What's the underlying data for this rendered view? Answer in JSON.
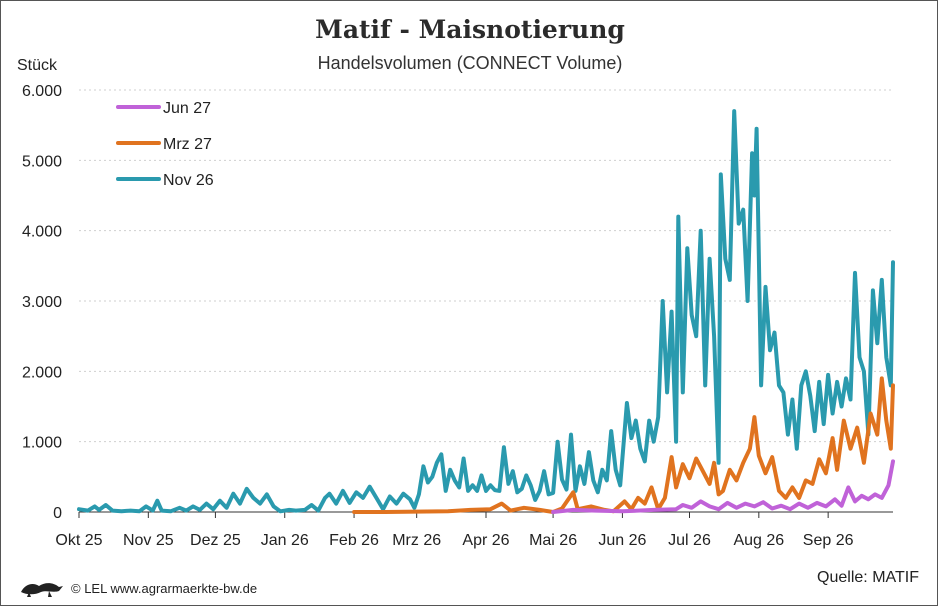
{
  "header": {
    "title": "Matif - Maisnotierung",
    "subtitle": "Handelsvolumen (CONNECT Volume)",
    "ylabel": "Stück"
  },
  "footer": {
    "copyright": "© LEL www.agrarmaerkte-bw.de",
    "source": "Quelle: MATIF"
  },
  "chart_data": {
    "type": "line",
    "title": "Matif - Maisnotierung",
    "subtitle": "Handelsvolumen (CONNECT Volume)",
    "ylabel": "Stück",
    "xlabel": "",
    "ylim": [
      0,
      6000
    ],
    "yticks": [
      0,
      1000,
      2000,
      3000,
      4000,
      5000,
      6000
    ],
    "ytick_labels": [
      "0",
      "1.000",
      "2.000",
      "3.000",
      "4.000",
      "5.000",
      "6.000"
    ],
    "x_range": [
      "2025-10-01",
      "2026-09-30"
    ],
    "xticks": [
      {
        "date": "2025-10-01",
        "label": "Okt 25"
      },
      {
        "date": "2025-11-01",
        "label": "Nov 25"
      },
      {
        "date": "2025-12-01",
        "label": "Dez 25"
      },
      {
        "date": "2026-01-01",
        "label": "Jan 26"
      },
      {
        "date": "2026-02-01",
        "label": "Feb 26"
      },
      {
        "date": "2026-03-01",
        "label": "Mrz 26"
      },
      {
        "date": "2026-04-01",
        "label": "Apr 26"
      },
      {
        "date": "2026-05-01",
        "label": "Mai 26"
      },
      {
        "date": "2026-06-01",
        "label": "Jun 26"
      },
      {
        "date": "2026-07-01",
        "label": "Jul 26"
      },
      {
        "date": "2026-08-01",
        "label": "Aug 26"
      },
      {
        "date": "2026-09-01",
        "label": "Sep 26"
      }
    ],
    "grid": "horizontal dashed",
    "legend": "top-left",
    "series": [
      {
        "name": "Nov 26",
        "color": "#2a9aae",
        "points": [
          [
            "2025-10-01",
            40
          ],
          [
            "2025-10-05",
            20
          ],
          [
            "2025-10-08",
            80
          ],
          [
            "2025-10-10",
            30
          ],
          [
            "2025-10-13",
            100
          ],
          [
            "2025-10-16",
            20
          ],
          [
            "2025-10-20",
            10
          ],
          [
            "2025-10-24",
            20
          ],
          [
            "2025-10-28",
            10
          ],
          [
            "2025-10-31",
            80
          ],
          [
            "2025-11-03",
            20
          ],
          [
            "2025-11-05",
            160
          ],
          [
            "2025-11-07",
            20
          ],
          [
            "2025-11-11",
            10
          ],
          [
            "2025-11-15",
            60
          ],
          [
            "2025-11-18",
            20
          ],
          [
            "2025-11-21",
            80
          ],
          [
            "2025-11-24",
            30
          ],
          [
            "2025-11-27",
            120
          ],
          [
            "2025-11-30",
            40
          ],
          [
            "2025-12-03",
            160
          ],
          [
            "2025-12-06",
            60
          ],
          [
            "2025-12-09",
            260
          ],
          [
            "2025-12-12",
            120
          ],
          [
            "2025-12-15",
            330
          ],
          [
            "2025-12-18",
            200
          ],
          [
            "2025-12-21",
            120
          ],
          [
            "2025-12-24",
            250
          ],
          [
            "2025-12-27",
            80
          ],
          [
            "2025-12-30",
            10
          ],
          [
            "2026-01-03",
            30
          ],
          [
            "2026-01-06",
            20
          ],
          [
            "2026-01-10",
            30
          ],
          [
            "2026-01-13",
            100
          ],
          [
            "2026-01-16",
            20
          ],
          [
            "2026-01-19",
            200
          ],
          [
            "2026-01-21",
            260
          ],
          [
            "2026-01-24",
            120
          ],
          [
            "2026-01-27",
            300
          ],
          [
            "2026-01-30",
            130
          ],
          [
            "2026-02-02",
            280
          ],
          [
            "2026-02-05",
            200
          ],
          [
            "2026-02-08",
            360
          ],
          [
            "2026-02-11",
            200
          ],
          [
            "2026-02-14",
            40
          ],
          [
            "2026-02-17",
            220
          ],
          [
            "2026-02-20",
            120
          ],
          [
            "2026-02-23",
            260
          ],
          [
            "2026-02-26",
            180
          ],
          [
            "2026-02-28",
            60
          ],
          [
            "2026-03-02",
            250
          ],
          [
            "2026-03-04",
            650
          ],
          [
            "2026-03-06",
            420
          ],
          [
            "2026-03-08",
            500
          ],
          [
            "2026-03-10",
            700
          ],
          [
            "2026-03-12",
            820
          ],
          [
            "2026-03-14",
            300
          ],
          [
            "2026-03-16",
            600
          ],
          [
            "2026-03-18",
            450
          ],
          [
            "2026-03-20",
            350
          ],
          [
            "2026-03-22",
            760
          ],
          [
            "2026-03-24",
            300
          ],
          [
            "2026-03-26",
            380
          ],
          [
            "2026-03-28",
            300
          ],
          [
            "2026-03-30",
            520
          ],
          [
            "2026-04-01",
            300
          ],
          [
            "2026-04-03",
            380
          ],
          [
            "2026-04-05",
            310
          ],
          [
            "2026-04-07",
            300
          ],
          [
            "2026-04-09",
            920
          ],
          [
            "2026-04-11",
            400
          ],
          [
            "2026-04-13",
            580
          ],
          [
            "2026-04-15",
            280
          ],
          [
            "2026-04-17",
            330
          ],
          [
            "2026-04-19",
            520
          ],
          [
            "2026-04-21",
            380
          ],
          [
            "2026-04-23",
            170
          ],
          [
            "2026-04-25",
            300
          ],
          [
            "2026-04-27",
            580
          ],
          [
            "2026-04-29",
            250
          ],
          [
            "2026-05-01",
            270
          ],
          [
            "2026-05-03",
            1000
          ],
          [
            "2026-05-05",
            460
          ],
          [
            "2026-05-07",
            320
          ],
          [
            "2026-05-09",
            1100
          ],
          [
            "2026-05-11",
            300
          ],
          [
            "2026-05-13",
            650
          ],
          [
            "2026-05-15",
            400
          ],
          [
            "2026-05-17",
            850
          ],
          [
            "2026-05-19",
            450
          ],
          [
            "2026-05-21",
            280
          ],
          [
            "2026-05-23",
            600
          ],
          [
            "2026-05-25",
            450
          ],
          [
            "2026-05-27",
            1150
          ],
          [
            "2026-05-29",
            600
          ],
          [
            "2026-05-31",
            380
          ],
          [
            "2026-06-03",
            1550
          ],
          [
            "2026-06-05",
            1050
          ],
          [
            "2026-06-07",
            1300
          ],
          [
            "2026-06-09",
            900
          ],
          [
            "2026-06-11",
            720
          ],
          [
            "2026-06-13",
            1300
          ],
          [
            "2026-06-15",
            1000
          ],
          [
            "2026-06-17",
            1350
          ],
          [
            "2026-06-19",
            3000
          ],
          [
            "2026-06-21",
            1700
          ],
          [
            "2026-06-23",
            2850
          ],
          [
            "2026-06-25",
            1000
          ],
          [
            "2026-06-26",
            4200
          ],
          [
            "2026-06-28",
            1700
          ],
          [
            "2026-06-30",
            3750
          ],
          [
            "2026-07-02",
            2800
          ],
          [
            "2026-07-04",
            2500
          ],
          [
            "2026-07-06",
            4000
          ],
          [
            "2026-07-08",
            1800
          ],
          [
            "2026-07-10",
            3600
          ],
          [
            "2026-07-12",
            2500
          ],
          [
            "2026-07-14",
            700
          ],
          [
            "2026-07-15",
            4800
          ],
          [
            "2026-07-17",
            3600
          ],
          [
            "2026-07-19",
            3300
          ],
          [
            "2026-07-21",
            5700
          ],
          [
            "2026-07-23",
            4100
          ],
          [
            "2026-07-25",
            4300
          ],
          [
            "2026-07-27",
            3000
          ],
          [
            "2026-07-29",
            5100
          ],
          [
            "2026-07-30",
            4500
          ],
          [
            "2026-07-31",
            5450
          ],
          [
            "2026-08-02",
            1800
          ],
          [
            "2026-08-04",
            3200
          ],
          [
            "2026-08-06",
            2300
          ],
          [
            "2026-08-08",
            2550
          ],
          [
            "2026-08-10",
            1800
          ],
          [
            "2026-08-12",
            1700
          ],
          [
            "2026-08-14",
            1100
          ],
          [
            "2026-08-16",
            1600
          ],
          [
            "2026-08-18",
            900
          ],
          [
            "2026-08-20",
            1800
          ],
          [
            "2026-08-22",
            2000
          ],
          [
            "2026-08-24",
            1650
          ],
          [
            "2026-08-26",
            1150
          ],
          [
            "2026-08-28",
            1850
          ],
          [
            "2026-08-30",
            1250
          ],
          [
            "2026-09-01",
            1950
          ],
          [
            "2026-09-03",
            1400
          ],
          [
            "2026-09-05",
            1850
          ],
          [
            "2026-09-07",
            1500
          ],
          [
            "2026-09-09",
            1900
          ],
          [
            "2026-09-11",
            1600
          ],
          [
            "2026-09-13",
            3400
          ],
          [
            "2026-09-15",
            2200
          ],
          [
            "2026-09-17",
            2000
          ],
          [
            "2026-09-19",
            1100
          ],
          [
            "2026-09-21",
            3150
          ],
          [
            "2026-09-23",
            2400
          ],
          [
            "2026-09-25",
            3300
          ],
          [
            "2026-09-27",
            2200
          ],
          [
            "2026-09-29",
            1800
          ],
          [
            "2026-09-30",
            3550
          ]
        ]
      },
      {
        "name": "Mrz 27",
        "color": "#e0731f",
        "points": [
          [
            "2026-02-01",
            0
          ],
          [
            "2026-02-15",
            0
          ],
          [
            "2026-03-01",
            5
          ],
          [
            "2026-03-15",
            10
          ],
          [
            "2026-03-25",
            30
          ],
          [
            "2026-04-03",
            40
          ],
          [
            "2026-04-08",
            120
          ],
          [
            "2026-04-12",
            20
          ],
          [
            "2026-04-18",
            60
          ],
          [
            "2026-04-25",
            30
          ],
          [
            "2026-05-01",
            0
          ],
          [
            "2026-05-05",
            50
          ],
          [
            "2026-05-10",
            280
          ],
          [
            "2026-05-12",
            40
          ],
          [
            "2026-05-18",
            80
          ],
          [
            "2026-05-24",
            30
          ],
          [
            "2026-05-28",
            10
          ],
          [
            "2026-06-02",
            150
          ],
          [
            "2026-06-05",
            40
          ],
          [
            "2026-06-08",
            200
          ],
          [
            "2026-06-11",
            120
          ],
          [
            "2026-06-14",
            350
          ],
          [
            "2026-06-17",
            40
          ],
          [
            "2026-06-20",
            200
          ],
          [
            "2026-06-23",
            780
          ],
          [
            "2026-06-25",
            350
          ],
          [
            "2026-06-28",
            680
          ],
          [
            "2026-07-01",
            480
          ],
          [
            "2026-07-04",
            760
          ],
          [
            "2026-07-07",
            580
          ],
          [
            "2026-07-10",
            400
          ],
          [
            "2026-07-12",
            700
          ],
          [
            "2026-07-14",
            250
          ],
          [
            "2026-07-16",
            300
          ],
          [
            "2026-07-19",
            600
          ],
          [
            "2026-07-22",
            450
          ],
          [
            "2026-07-25",
            700
          ],
          [
            "2026-07-28",
            900
          ],
          [
            "2026-07-30",
            1350
          ],
          [
            "2026-08-01",
            800
          ],
          [
            "2026-08-04",
            550
          ],
          [
            "2026-08-07",
            780
          ],
          [
            "2026-08-10",
            300
          ],
          [
            "2026-08-13",
            200
          ],
          [
            "2026-08-16",
            350
          ],
          [
            "2026-08-19",
            200
          ],
          [
            "2026-08-22",
            450
          ],
          [
            "2026-08-25",
            400
          ],
          [
            "2026-08-28",
            750
          ],
          [
            "2026-08-31",
            550
          ],
          [
            "2026-09-03",
            1050
          ],
          [
            "2026-09-05",
            600
          ],
          [
            "2026-09-08",
            1300
          ],
          [
            "2026-09-11",
            900
          ],
          [
            "2026-09-14",
            1200
          ],
          [
            "2026-09-17",
            700
          ],
          [
            "2026-09-20",
            1400
          ],
          [
            "2026-09-23",
            1100
          ],
          [
            "2026-09-25",
            1900
          ],
          [
            "2026-09-27",
            1300
          ],
          [
            "2026-09-29",
            900
          ],
          [
            "2026-09-30",
            1800
          ]
        ]
      },
      {
        "name": "Jun 27",
        "color": "#c062d8",
        "points": [
          [
            "2026-05-01",
            0
          ],
          [
            "2026-05-10",
            30
          ],
          [
            "2026-05-20",
            20
          ],
          [
            "2026-06-01",
            10
          ],
          [
            "2026-06-15",
            30
          ],
          [
            "2026-06-25",
            40
          ],
          [
            "2026-06-28",
            100
          ],
          [
            "2026-07-02",
            60
          ],
          [
            "2026-07-06",
            150
          ],
          [
            "2026-07-10",
            80
          ],
          [
            "2026-07-14",
            40
          ],
          [
            "2026-07-18",
            130
          ],
          [
            "2026-07-22",
            60
          ],
          [
            "2026-07-26",
            120
          ],
          [
            "2026-07-30",
            80
          ],
          [
            "2026-08-03",
            140
          ],
          [
            "2026-08-07",
            50
          ],
          [
            "2026-08-11",
            90
          ],
          [
            "2026-08-15",
            40
          ],
          [
            "2026-08-19",
            120
          ],
          [
            "2026-08-23",
            60
          ],
          [
            "2026-08-27",
            130
          ],
          [
            "2026-08-31",
            80
          ],
          [
            "2026-09-04",
            180
          ],
          [
            "2026-09-07",
            90
          ],
          [
            "2026-09-10",
            350
          ],
          [
            "2026-09-13",
            150
          ],
          [
            "2026-09-16",
            230
          ],
          [
            "2026-09-19",
            180
          ],
          [
            "2026-09-22",
            250
          ],
          [
            "2026-09-25",
            200
          ],
          [
            "2026-09-28",
            380
          ],
          [
            "2026-09-30",
            720
          ]
        ]
      }
    ]
  }
}
